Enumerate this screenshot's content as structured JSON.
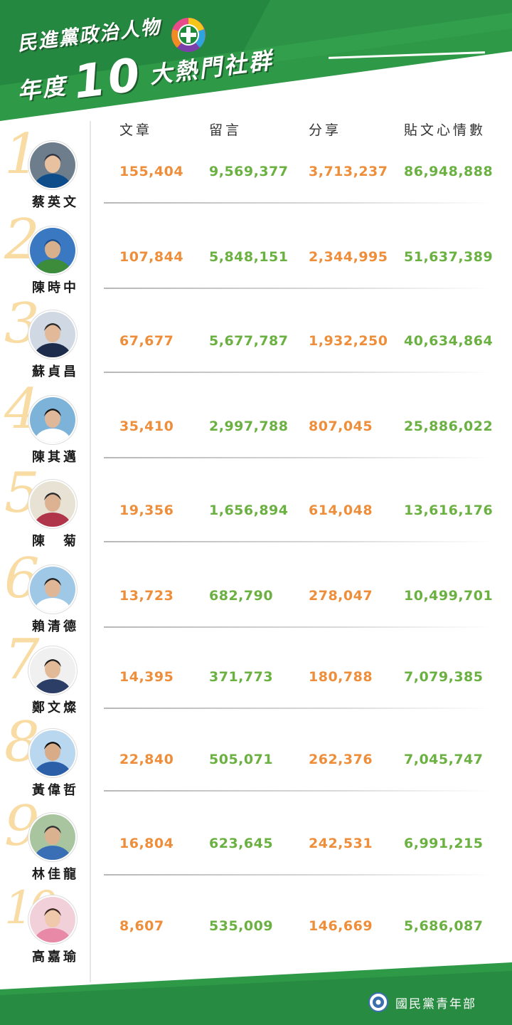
{
  "title": {
    "line1": "民進黨政治人物",
    "line2_prefix": "年度",
    "line2_number": "10",
    "line2_suffix": "大熱門社群"
  },
  "columns": [
    "文章",
    "留言",
    "分享",
    "貼文心情數"
  ],
  "rows": [
    {
      "rank": "1",
      "name": "蔡英文",
      "values": [
        "155,404",
        "9,569,377",
        "3,713,237",
        "86,948,888"
      ]
    },
    {
      "rank": "2",
      "name": "陳時中",
      "values": [
        "107,844",
        "5,848,151",
        "2,344,995",
        "51,637,389"
      ]
    },
    {
      "rank": "3",
      "name": "蘇貞昌",
      "values": [
        "67,677",
        "5,677,787",
        "1,932,250",
        "40,634,864"
      ]
    },
    {
      "rank": "4",
      "name": "陳其邁",
      "values": [
        "35,410",
        "2,997,788",
        "807,045",
        "25,886,022"
      ]
    },
    {
      "rank": "5",
      "name": "陳　菊",
      "values": [
        "19,356",
        "1,656,894",
        "614,048",
        "13,616,176"
      ]
    },
    {
      "rank": "6",
      "name": "賴清德",
      "values": [
        "13,723",
        "682,790",
        "278,047",
        "10,499,701"
      ]
    },
    {
      "rank": "7",
      "name": "鄭文燦",
      "values": [
        "14,395",
        "371,773",
        "180,788",
        "7,079,385"
      ]
    },
    {
      "rank": "8",
      "name": "黃偉哲",
      "values": [
        "22,840",
        "505,071",
        "262,376",
        "7,045,747"
      ]
    },
    {
      "rank": "9",
      "name": "林佳龍",
      "values": [
        "16,804",
        "623,645",
        "242,531",
        "6,991,215"
      ]
    },
    {
      "rank": "10",
      "name": "高嘉瑜",
      "values": [
        "8,607",
        "535,009",
        "146,669",
        "5,686,087"
      ]
    }
  ],
  "footer": {
    "org": "國民黨青年部"
  },
  "colors": {
    "green_dark": "#1f7a3a",
    "green": "#2e9a48",
    "orange": "#ef8e3a",
    "value_green": "#6bb141",
    "rank": "#f8dca3"
  },
  "icons": {
    "party_logo": "dpp-logo-icon",
    "footer_logo": "kmt-logo-icon"
  }
}
